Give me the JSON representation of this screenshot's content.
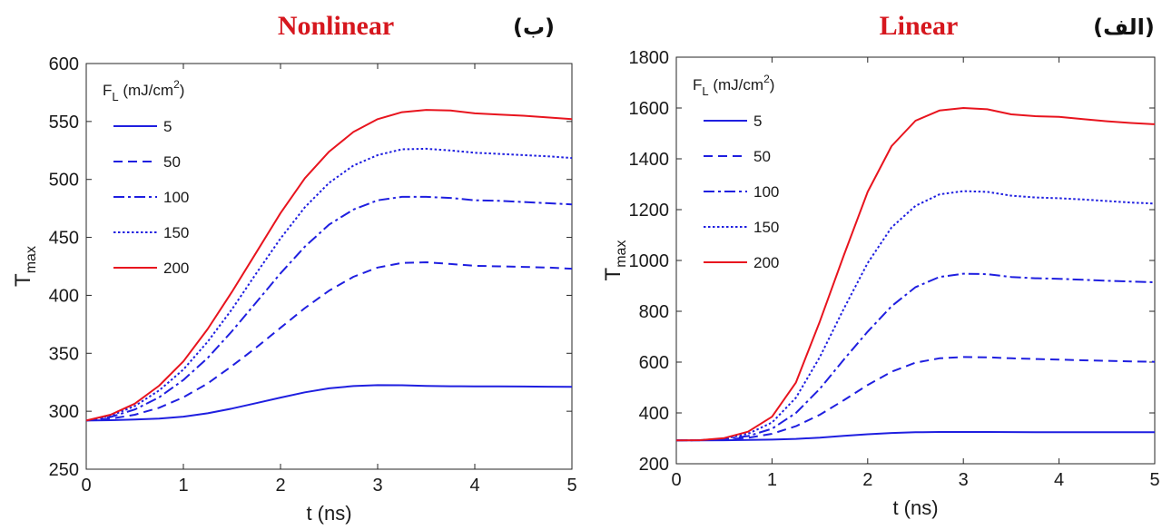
{
  "colors": {
    "blue": "#1f1fe0",
    "red": "#e8141e",
    "title_red": "#d6171e",
    "axis": "#262626"
  },
  "chart_data": [
    {
      "type": "line",
      "title": "Nonlinear",
      "panel_label": "(ب)",
      "xlabel": "t (ns)",
      "ylabel": "T",
      "ylabel_sub": "max",
      "xlim": [
        0,
        5
      ],
      "ylim": [
        250,
        600
      ],
      "xticks": [
        0,
        1,
        2,
        3,
        4,
        5
      ],
      "yticks": [
        250,
        300,
        350,
        400,
        450,
        500,
        550,
        600
      ],
      "grid": false,
      "legend_placement": "top-left",
      "legend_title": "F",
      "legend_title_sub": "L",
      "legend_units": "(mJ/cm",
      "legend_units_sup": "2",
      "legend_units_close": ")",
      "x": [
        0,
        0.25,
        0.5,
        0.75,
        1.0,
        1.25,
        1.5,
        1.75,
        2.0,
        2.25,
        2.5,
        2.75,
        3.0,
        3.25,
        3.5,
        3.75,
        4.0,
        4.25,
        4.5,
        4.75,
        5.0
      ],
      "series": [
        {
          "name": "5",
          "style": "solid",
          "color": "blue",
          "values": [
            292,
            292.3,
            292.8,
            293.7,
            295.3,
            298.2,
            302.3,
            307,
            311.8,
            316.3,
            319.8,
            321.7,
            322.5,
            322.4,
            321.9,
            321.6,
            321.5,
            321.4,
            321.3,
            321.2,
            321.1
          ]
        },
        {
          "name": "50",
          "style": "dashed",
          "color": "blue",
          "values": [
            292,
            293.5,
            297,
            303,
            312,
            324,
            339,
            355,
            372,
            389,
            404,
            416,
            424,
            428,
            428.5,
            427,
            425.5,
            425,
            424.5,
            424,
            423
          ]
        },
        {
          "name": "100",
          "style": "dashdot",
          "color": "blue",
          "values": [
            292,
            295,
            301.5,
            312,
            327,
            346,
            369,
            394,
            419,
            442,
            461,
            474,
            482,
            485,
            485,
            484,
            482,
            481.5,
            480.5,
            479.5,
            478.5
          ]
        },
        {
          "name": "150",
          "style": "dotted",
          "color": "blue",
          "values": [
            292,
            296,
            304.5,
            318,
            336,
            360,
            388,
            419,
            449,
            476,
            497,
            512,
            521,
            526,
            526.5,
            525,
            523,
            522,
            521,
            520,
            518.5
          ]
        },
        {
          "name": "200",
          "style": "solid",
          "color": "red",
          "values": [
            292,
            297,
            306.5,
            322,
            343,
            371,
            403,
            437,
            471,
            501,
            524,
            541,
            552,
            558,
            560,
            559.5,
            557,
            556,
            555,
            553.5,
            552
          ]
        }
      ]
    },
    {
      "type": "line",
      "title": "Linear",
      "panel_label": "(الف)",
      "xlabel": "t (ns)",
      "ylabel": "T",
      "ylabel_sub": "max",
      "xlim": [
        0,
        5
      ],
      "ylim": [
        200,
        1800
      ],
      "xticks": [
        0,
        1,
        2,
        3,
        4,
        5
      ],
      "yticks": [
        200,
        400,
        600,
        800,
        1000,
        1200,
        1400,
        1600,
        1800
      ],
      "grid": false,
      "legend_placement": "top-left",
      "legend_title": "F",
      "legend_title_sub": "L",
      "legend_units": "(mJ/cm",
      "legend_units_sup": "2",
      "legend_units_close": ")",
      "x": [
        0,
        0.25,
        0.5,
        0.75,
        1.0,
        1.25,
        1.5,
        1.75,
        2.0,
        2.25,
        2.5,
        2.75,
        3.0,
        3.25,
        3.5,
        3.75,
        4.0,
        4.25,
        4.5,
        4.75,
        5.0
      ],
      "series": [
        {
          "name": "5",
          "style": "solid",
          "color": "blue",
          "values": [
            292,
            292,
            292.5,
            293.5,
            295,
            298,
            303,
            310,
            316,
            321,
            324,
            325,
            325,
            325,
            324.5,
            324.3,
            324.2,
            324.1,
            324,
            323.9,
            323.8
          ]
        },
        {
          "name": "50",
          "style": "dashed",
          "color": "blue",
          "values": [
            292,
            292.5,
            295,
            302,
            318,
            348,
            393,
            450,
            510,
            562,
            598,
            615,
            620,
            619,
            615,
            612,
            610,
            607,
            605,
            603,
            601
          ]
        },
        {
          "name": "100",
          "style": "dashdot",
          "color": "blue",
          "values": [
            292,
            293,
            297,
            309,
            338,
            400,
            495,
            610,
            720,
            820,
            895,
            935,
            948,
            946,
            935,
            930,
            928,
            924,
            920,
            917,
            914
          ]
        },
        {
          "name": "150",
          "style": "dotted",
          "color": "blue",
          "values": [
            292,
            293,
            299,
            318,
            362,
            460,
            620,
            810,
            990,
            1130,
            1215,
            1260,
            1273,
            1270,
            1255,
            1248,
            1245,
            1240,
            1234,
            1228,
            1224
          ]
        },
        {
          "name": "200",
          "style": "solid",
          "color": "red",
          "values": [
            292,
            293,
            301,
            326,
            385,
            520,
            760,
            1020,
            1270,
            1450,
            1550,
            1590,
            1600,
            1595,
            1575,
            1568,
            1565,
            1556,
            1548,
            1541,
            1536
          ]
        }
      ]
    }
  ]
}
